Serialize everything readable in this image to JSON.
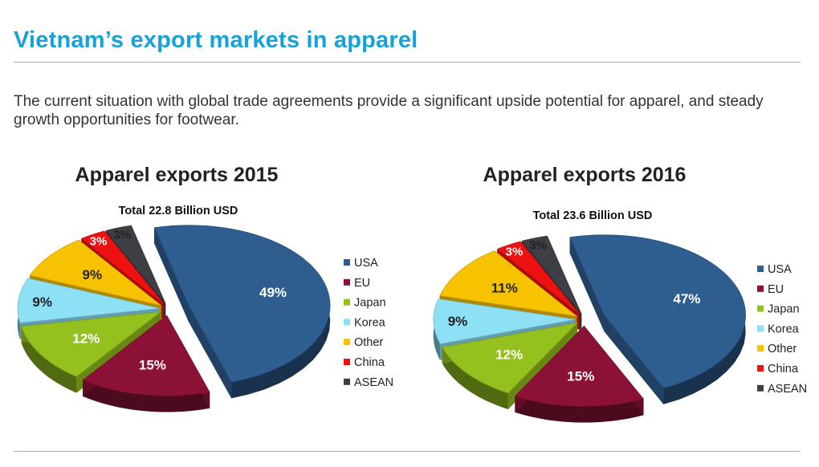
{
  "page": {
    "title": "Vietnam’s export markets in apparel",
    "intro": "The current situation with global trade agreements provide a significant upside potential for apparel, and steady growth opportunities for footwear."
  },
  "colors": {
    "USA": "#2e5d8f",
    "EU": "#8b1236",
    "Japan": "#94c11e",
    "Korea": "#8ee0f5",
    "Other": "#f7c200",
    "China": "#ee1111",
    "ASEAN": "#3d3f45",
    "title": "#16a2d8"
  },
  "chart_data": [
    {
      "type": "pie",
      "title": "Apparel exports 2015",
      "subtitle": "Total 22.8 Billion USD",
      "legend_position": "right",
      "categories": [
        "USA",
        "EU",
        "Japan",
        "Korea",
        "Other",
        "China",
        "ASEAN"
      ],
      "values": [
        49,
        15,
        12,
        9,
        9,
        3,
        3
      ],
      "labels": [
        "49%",
        "15%",
        "12%",
        "9%",
        "9%",
        "3%",
        "3%"
      ]
    },
    {
      "type": "pie",
      "title": "Apparel exports 2016",
      "subtitle": "Total 23.6 Billion USD",
      "legend_position": "right",
      "categories": [
        "USA",
        "EU",
        "Japan",
        "Korea",
        "Other",
        "China",
        "ASEAN"
      ],
      "values": [
        47,
        15,
        12,
        9,
        11,
        3,
        3
      ],
      "labels": [
        "47%",
        "15%",
        "12%",
        "9%",
        "11%",
        "3%",
        "3%"
      ]
    }
  ]
}
